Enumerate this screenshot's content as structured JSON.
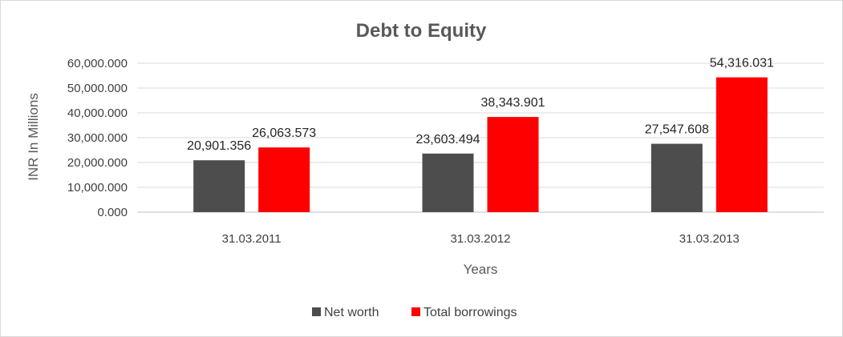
{
  "chart_data": {
    "type": "bar",
    "title": "Debt to Equity",
    "xlabel": "Years",
    "ylabel": "INR In Millions",
    "categories": [
      "31.03.2011",
      "31.03.2012",
      "31.03.2013"
    ],
    "series": [
      {
        "name": "Net worth",
        "color": "#4d4d4d",
        "values": [
          20901.356,
          23603.494,
          27547.608
        ],
        "labels": [
          "20,901.356",
          "23,603.494",
          "27,547.608"
        ]
      },
      {
        "name": "Total borrowings",
        "color": "#ff0000",
        "values": [
          26063.573,
          38343.901,
          54316.031
        ],
        "labels": [
          "26,063.573",
          "38,343.901",
          "54,316.031"
        ]
      }
    ],
    "ylim": [
      0,
      60000
    ],
    "yticks": [
      0,
      10000,
      20000,
      30000,
      40000,
      50000,
      60000
    ],
    "ytick_labels": [
      "0.000",
      "10,000.000",
      "20,000.000",
      "30,000.000",
      "40,000.000",
      "50,000.000",
      "60,000.000"
    ],
    "grid": true,
    "legend_position": "bottom"
  }
}
